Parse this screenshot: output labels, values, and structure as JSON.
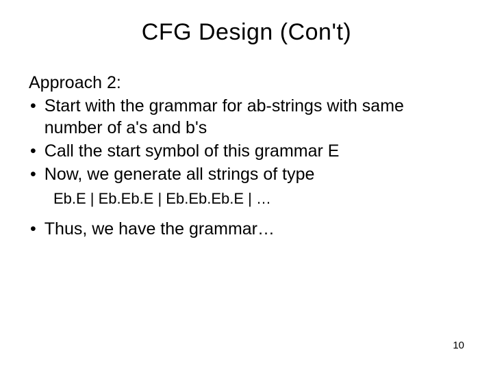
{
  "title": "CFG Design (Con't)",
  "approach_label": "Approach 2:",
  "bullets": [
    "Start with the grammar for ab-strings with same number of a's and b's",
    "Call the start symbol of this grammar E",
    "Now, we generate all strings of type"
  ],
  "indented_line": "Eb.E | Eb.Eb.E | Eb.Eb.Eb.E | …",
  "final_bullet": "Thus, we have the grammar…",
  "page_number": "10",
  "colors": {
    "background": "#ffffff",
    "text": "#000000"
  },
  "typography": {
    "title_fontsize": 34,
    "body_fontsize": 25,
    "indented_fontsize": 22,
    "pagenum_fontsize": 15,
    "font_family": "Arial"
  }
}
